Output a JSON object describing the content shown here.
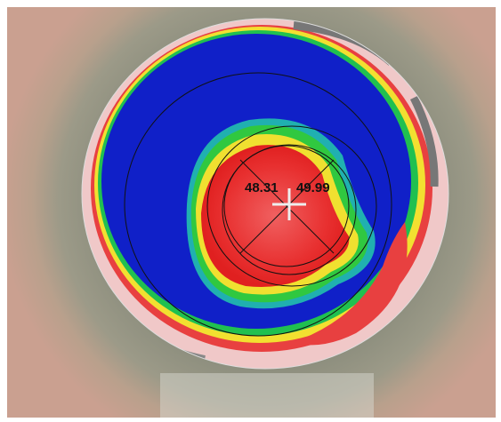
{
  "readings": {
    "left": "48.31",
    "right": "49.99"
  }
}
